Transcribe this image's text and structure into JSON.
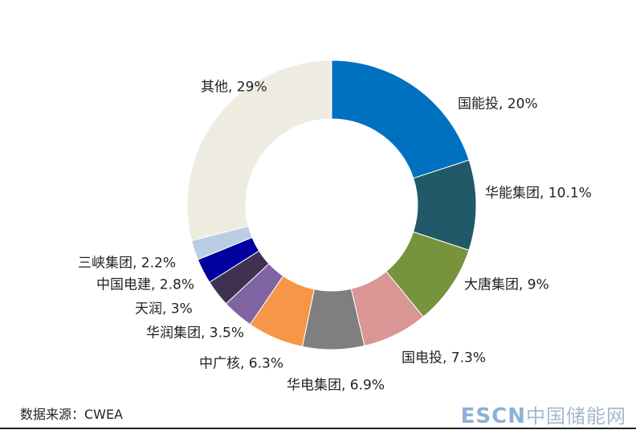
{
  "chart_data": {
    "type": "pie",
    "donut": true,
    "start": "top, clockwise",
    "slices": [
      {
        "label": "国能投, 20%",
        "value": 20,
        "color": "#0070C0"
      },
      {
        "label": "华能集团, 10.1%",
        "value": 10.1,
        "color": "#215968"
      },
      {
        "label": "大唐集团, 9%",
        "value": 9,
        "color": "#77933C"
      },
      {
        "label": "国电投, 7.3%",
        "value": 7.3,
        "color": "#D99694"
      },
      {
        "label": "华电集团, 6.9%",
        "value": 6.9,
        "color": "#7F7F7F"
      },
      {
        "label": "中广核, 6.3%",
        "value": 6.3,
        "color": "#F79646"
      },
      {
        "label": "华润集团, 3.5%",
        "value": 3.5,
        "color": "#8064A2"
      },
      {
        "label": "天润, 3%",
        "value": 3,
        "color": "#3F3151"
      },
      {
        "label": "中国电建, 2.8%",
        "value": 2.8,
        "color": "#0000A0"
      },
      {
        "label": "三峡集团, 2.2%",
        "value": 2.2,
        "color": "#B9CDE5"
      },
      {
        "label": "其他, 29%",
        "value": 29,
        "color": "#EEECE1"
      }
    ]
  },
  "source": "数据来源：CWEA",
  "watermark": {
    "latin": "ESCN",
    "cn": "中国储能网"
  }
}
